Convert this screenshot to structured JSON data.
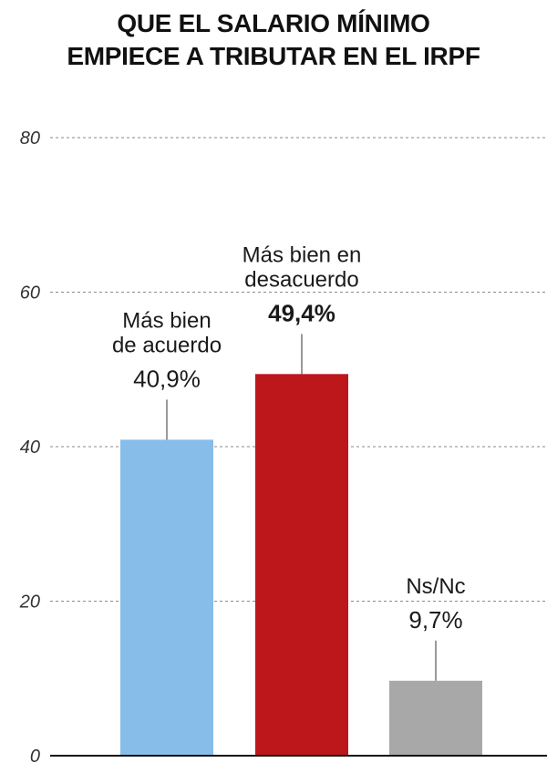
{
  "title_lines": [
    "QUE EL SALARIO MÍNIMO",
    "EMPIECE A TRIBUTAR EN EL IRPF"
  ],
  "chart_data": {
    "type": "bar",
    "title": "QUE EL SALARIO MÍNIMO EMPIECE A TRIBUTAR EN EL IRPF",
    "categories": [
      {
        "lines": [
          "Más bien",
          "de acuerdo"
        ],
        "value_label": "40,9%",
        "bold": false,
        "color": "#86bde9"
      },
      {
        "lines": [
          "Más bien en",
          "desacuerdo"
        ],
        "value_label": "49,4%",
        "bold": true,
        "color": "#bd171c"
      },
      {
        "lines": [
          "Ns/Nc"
        ],
        "value_label": "9,7%",
        "bold": false,
        "color": "#a8a8a8"
      }
    ],
    "values": [
      40.9,
      49.4,
      9.7
    ],
    "ylim": [
      0,
      80
    ],
    "yticks": [
      "0",
      "20",
      "40",
      "60",
      "80"
    ],
    "ytick_values": [
      0,
      20,
      40,
      60,
      80
    ],
    "grid": true,
    "xlabel": "",
    "ylabel": ""
  }
}
